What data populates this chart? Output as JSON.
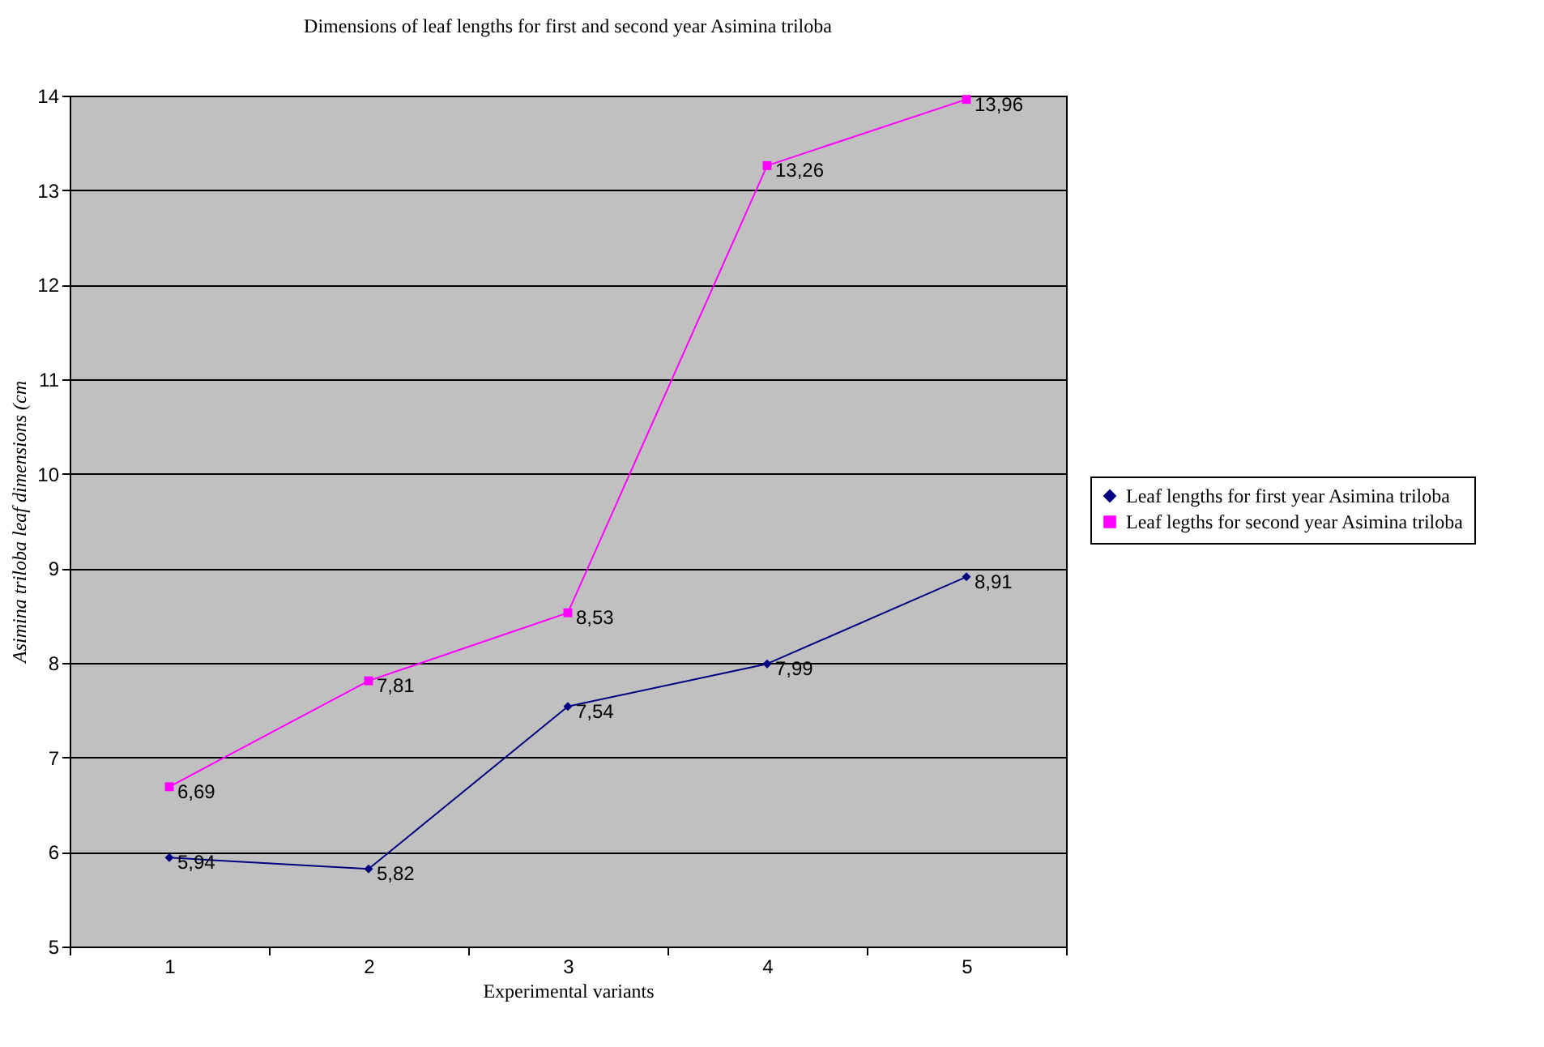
{
  "chart_data": {
    "type": "line",
    "title": "Dimensions of leaf lengths for first and second year Asimina triloba",
    "xlabel": "Experimental variants",
    "ylabel": "Asimina triloba  leaf dimensions (cm",
    "categories": [
      "1",
      "2",
      "3",
      "4",
      "5"
    ],
    "series": [
      {
        "name": "Leaf lengths for first year Asimina triloba",
        "color": "#000080",
        "marker": "diamond",
        "values": [
          5.94,
          5.82,
          7.54,
          7.99,
          8.91
        ],
        "value_labels": [
          "5,94",
          "5,82",
          "7,54",
          "7,99",
          "8,91"
        ]
      },
      {
        "name": "Leaf legths for second year Asimina triloba",
        "color": "#ff00ff",
        "marker": "square",
        "values": [
          6.69,
          7.81,
          8.53,
          13.26,
          13.96
        ],
        "value_labels": [
          "6,69",
          "7,81",
          "8,53",
          "13,26",
          "13,96"
        ]
      }
    ],
    "ylim": [
      5,
      14
    ],
    "yticks": [
      5,
      6,
      7,
      8,
      9,
      10,
      11,
      12,
      13,
      14
    ],
    "grid": "y",
    "legend": "right"
  }
}
